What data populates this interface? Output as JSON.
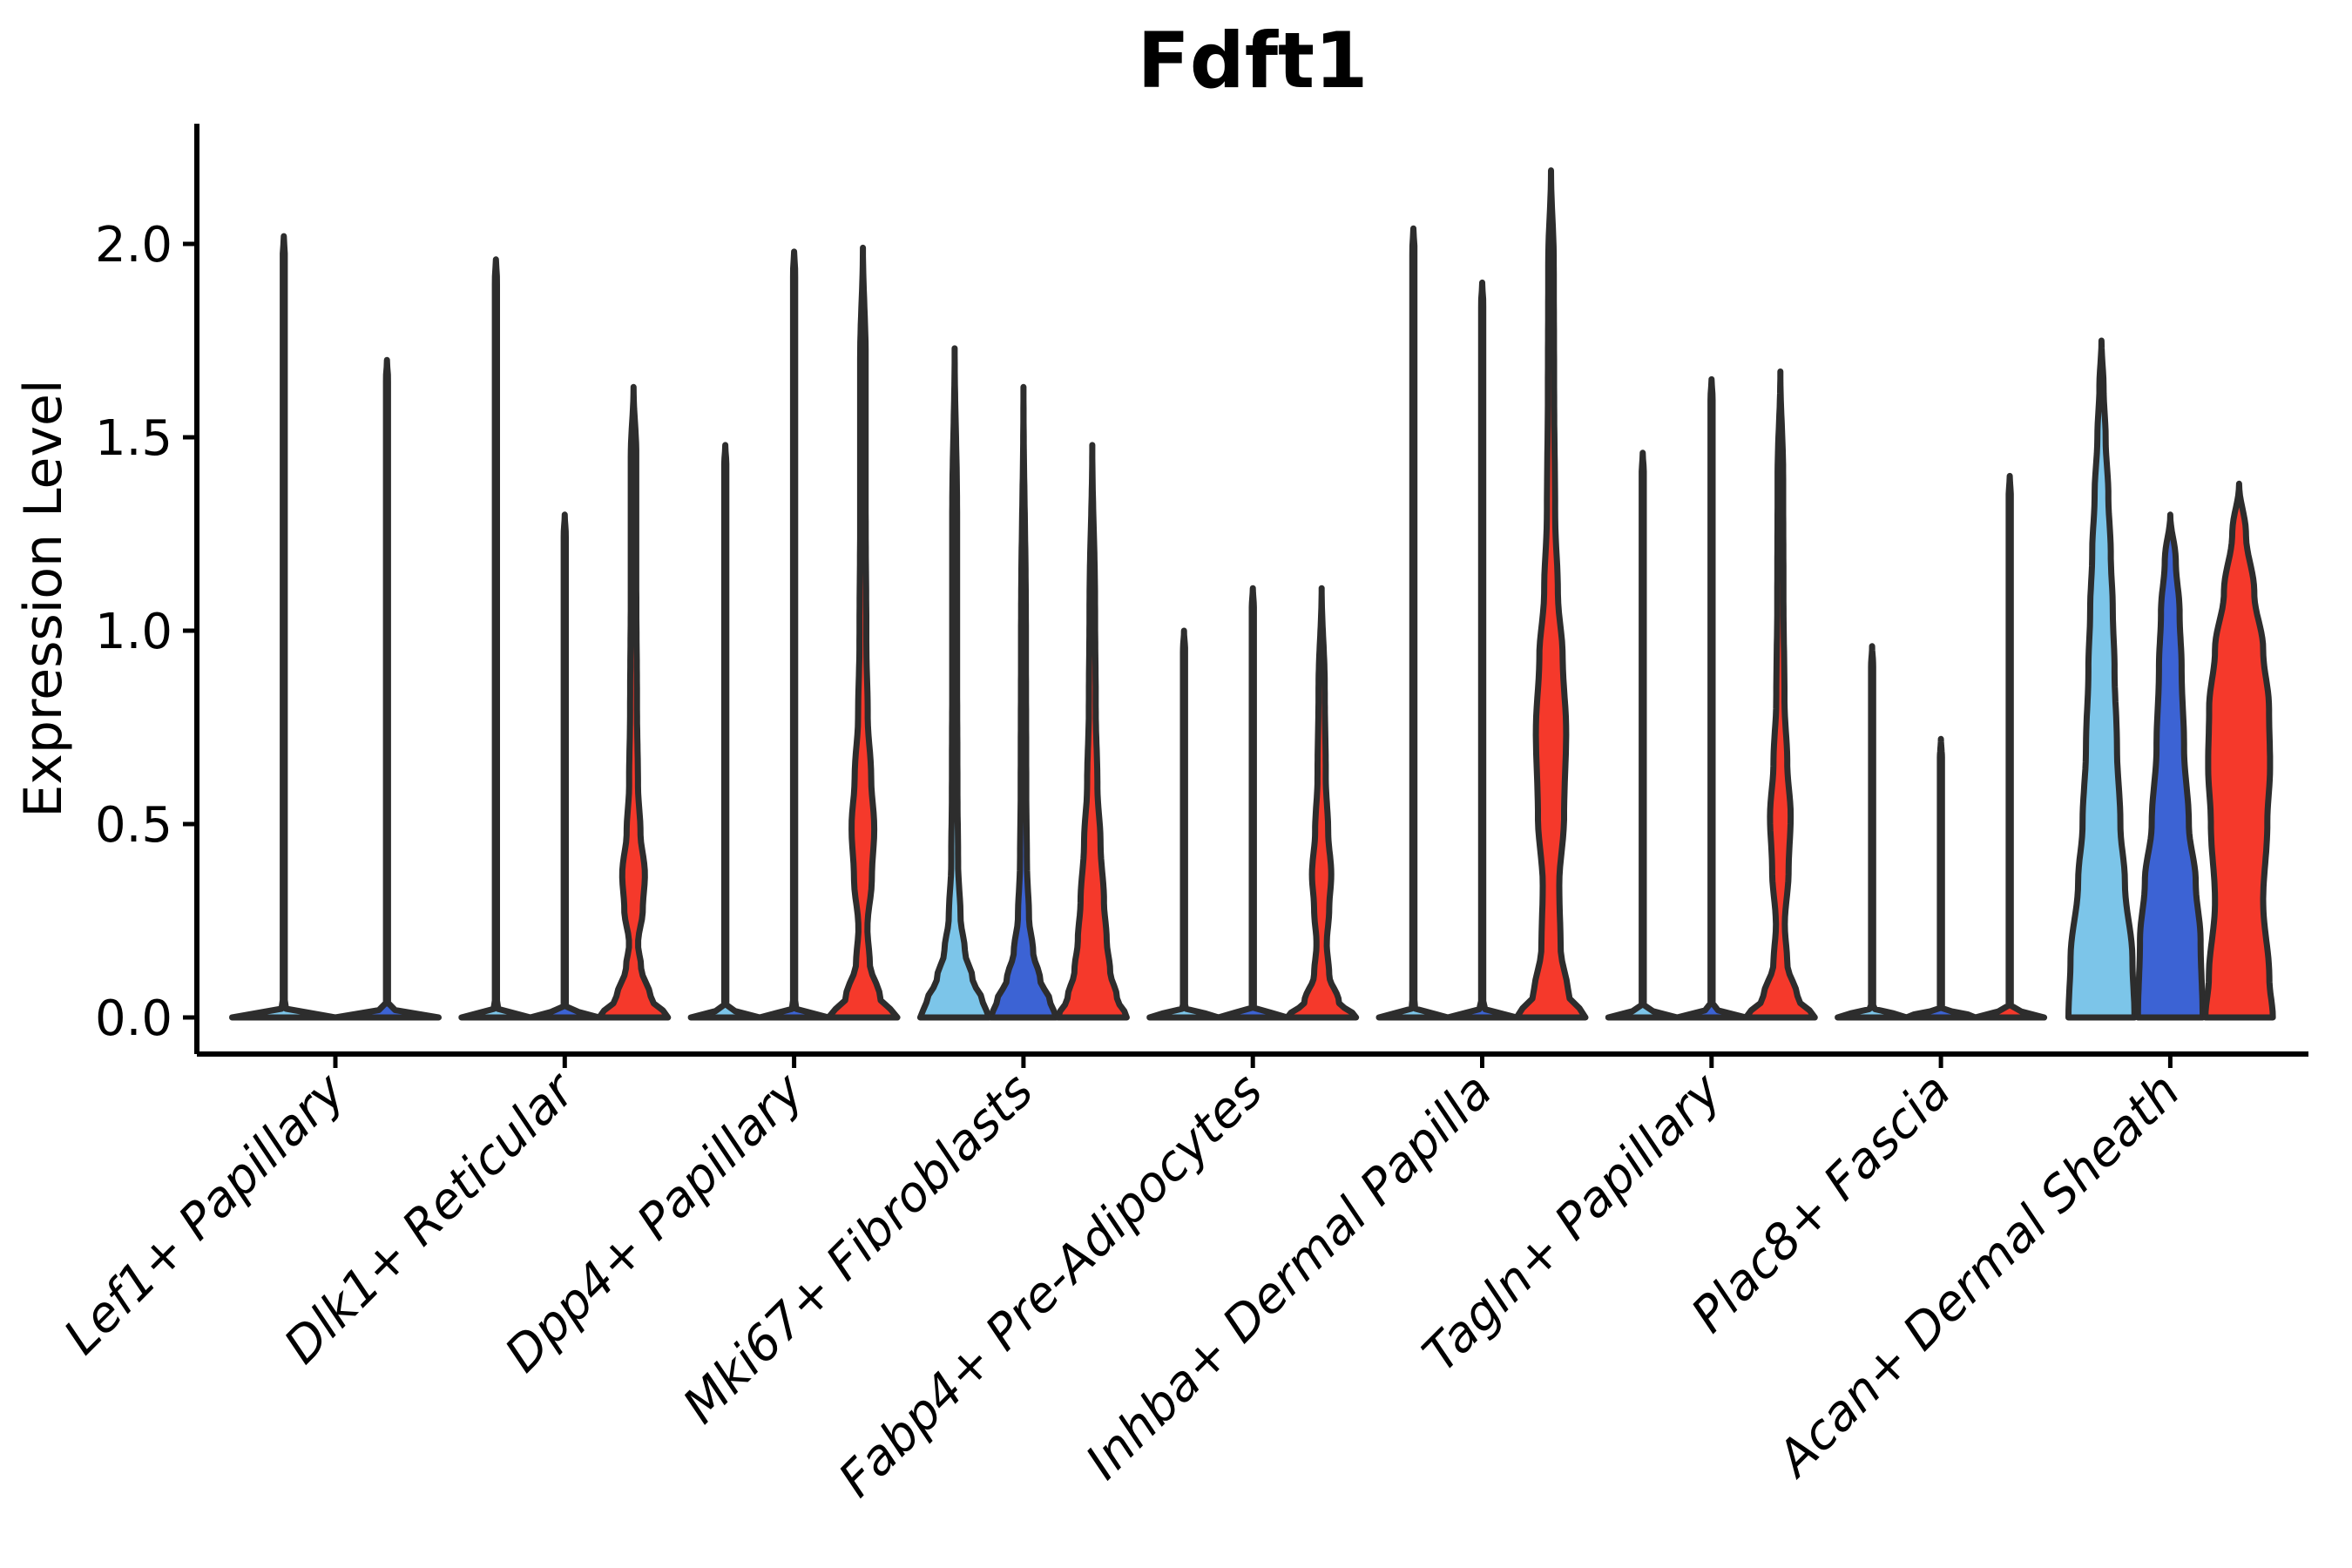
{
  "figure": {
    "background": "#ffffff"
  },
  "chart_data": {
    "type": "violin",
    "title": "Fdft1",
    "ylabel": "Expression Level",
    "xlabel": "",
    "yticks": [
      "0.0",
      "0.5",
      "1.0",
      "1.5",
      "2.0"
    ],
    "ylim": [
      -0.11,
      2.31
    ],
    "grid": false,
    "legend_position": "none",
    "outline_color": "#2d2d2d",
    "axis_color": "#000000",
    "palette": {
      "sample_1": "#7CC5E9",
      "sample_2": "#3C63D4",
      "sample_3": "#F5392B"
    },
    "categories": [
      {
        "label": "Lef1+ Papillary",
        "violins": [
          {
            "sample": "sample_1",
            "color": "#7CC5E9",
            "max_expression": 2.02,
            "width": 0.45,
            "profile": [
              [
                0,
                1
              ],
              [
                0.025,
                0.02
              ],
              [
                1.97,
                0.02
              ],
              [
                2.02,
                0
              ]
            ]
          },
          {
            "sample": "sample_2",
            "color": "#3C63D4",
            "max_expression": 1.7,
            "width": 0.45,
            "profile": [
              [
                0,
                1
              ],
              [
                0.025,
                0.02
              ],
              [
                1.65,
                0.02
              ],
              [
                1.7,
                0
              ]
            ]
          }
        ]
      },
      {
        "label": "Dlk1+ Reticular",
        "violins": [
          {
            "sample": "sample_1",
            "color": "#7CC5E9",
            "max_expression": 1.96,
            "width": 0.3,
            "profile": [
              [
                0,
                1
              ],
              [
                0.025,
                0.03
              ],
              [
                1.91,
                0.03
              ],
              [
                1.96,
                0
              ]
            ]
          },
          {
            "sample": "sample_2",
            "color": "#3C63D4",
            "max_expression": 1.3,
            "width": 0.3,
            "profile": [
              [
                0,
                1
              ],
              [
                0.025,
                0.03
              ],
              [
                1.25,
                0.03
              ],
              [
                1.3,
                0
              ]
            ]
          },
          {
            "sample": "sample_3",
            "color": "#F5392B",
            "max_expression": 1.63,
            "width": 0.3,
            "profile": [
              [
                0,
                1
              ],
              [
                0.05,
                0.5
              ],
              [
                0.13,
                0.22
              ],
              [
                0.19,
                0.13
              ],
              [
                0.28,
                0.27
              ],
              [
                0.37,
                0.33
              ],
              [
                0.48,
                0.2
              ],
              [
                0.6,
                0.13
              ],
              [
                0.8,
                0.1
              ],
              [
                1.1,
                0.08
              ],
              [
                1.45,
                0.08
              ],
              [
                1.63,
                0
              ]
            ]
          }
        ]
      },
      {
        "label": "Dpp4+ Papillary",
        "violins": [
          {
            "sample": "sample_1",
            "color": "#7CC5E9",
            "max_expression": 1.48,
            "width": 0.3,
            "profile": [
              [
                0,
                1
              ],
              [
                0.025,
                0.03
              ],
              [
                1.43,
                0.03
              ],
              [
                1.48,
                0
              ]
            ]
          },
          {
            "sample": "sample_2",
            "color": "#3C63D4",
            "max_expression": 1.98,
            "width": 0.3,
            "profile": [
              [
                0,
                1
              ],
              [
                0.025,
                0.03
              ],
              [
                1.93,
                0.03
              ],
              [
                1.98,
                0
              ]
            ]
          },
          {
            "sample": "sample_3",
            "color": "#F5392B",
            "max_expression": 1.99,
            "width": 0.3,
            "profile": [
              [
                0,
                1
              ],
              [
                0.05,
                0.5
              ],
              [
                0.14,
                0.2
              ],
              [
                0.23,
                0.13
              ],
              [
                0.36,
                0.26
              ],
              [
                0.49,
                0.33
              ],
              [
                0.62,
                0.24
              ],
              [
                0.78,
                0.14
              ],
              [
                0.97,
                0.1
              ],
              [
                1.3,
                0.08
              ],
              [
                1.7,
                0.08
              ],
              [
                1.99,
                0
              ]
            ]
          }
        ]
      },
      {
        "label": "Mki67+ Fibroblasts",
        "violins": [
          {
            "sample": "sample_1",
            "color": "#7CC5E9",
            "max_expression": 1.73,
            "width": 0.3,
            "profile": [
              [
                0,
                1
              ],
              [
                0.04,
                0.82
              ],
              [
                0.1,
                0.52
              ],
              [
                0.17,
                0.3
              ],
              [
                0.26,
                0.17
              ],
              [
                0.4,
                0.1
              ],
              [
                0.6,
                0.08
              ],
              [
                0.9,
                0.07
              ],
              [
                1.3,
                0.07
              ],
              [
                1.73,
                0
              ]
            ]
          },
          {
            "sample": "sample_2",
            "color": "#3C63D4",
            "max_expression": 1.63,
            "width": 0.3,
            "profile": [
              [
                0,
                0.95
              ],
              [
                0.04,
                0.78
              ],
              [
                0.1,
                0.48
              ],
              [
                0.17,
                0.28
              ],
              [
                0.26,
                0.16
              ],
              [
                0.4,
                0.1
              ],
              [
                0.6,
                0.08
              ],
              [
                1.0,
                0.07
              ],
              [
                1.63,
                0
              ]
            ]
          },
          {
            "sample": "sample_3",
            "color": "#F5392B",
            "max_expression": 1.48,
            "width": 0.3,
            "profile": [
              [
                0,
                1
              ],
              [
                0.05,
                0.72
              ],
              [
                0.12,
                0.52
              ],
              [
                0.2,
                0.42
              ],
              [
                0.3,
                0.34
              ],
              [
                0.45,
                0.24
              ],
              [
                0.6,
                0.15
              ],
              [
                0.8,
                0.1
              ],
              [
                1.06,
                0.08
              ],
              [
                1.48,
                0
              ]
            ]
          }
        ]
      },
      {
        "label": "Fabp4+ Pre-Adipocytes",
        "violins": [
          {
            "sample": "sample_1",
            "color": "#7CC5E9",
            "max_expression": 1.0,
            "width": 0.3,
            "profile": [
              [
                0,
                1
              ],
              [
                0.025,
                0.03
              ],
              [
                0.95,
                0.03
              ],
              [
                1.0,
                0
              ]
            ]
          },
          {
            "sample": "sample_2",
            "color": "#3C63D4",
            "max_expression": 1.11,
            "width": 0.3,
            "profile": [
              [
                0,
                1
              ],
              [
                0.025,
                0.03
              ],
              [
                1.06,
                0.03
              ],
              [
                1.11,
                0
              ]
            ]
          },
          {
            "sample": "sample_3",
            "color": "#F5392B",
            "max_expression": 1.11,
            "width": 0.3,
            "profile": [
              [
                0,
                1
              ],
              [
                0.04,
                0.5
              ],
              [
                0.11,
                0.22
              ],
              [
                0.19,
                0.15
              ],
              [
                0.28,
                0.22
              ],
              [
                0.37,
                0.28
              ],
              [
                0.48,
                0.19
              ],
              [
                0.62,
                0.12
              ],
              [
                0.85,
                0.09
              ],
              [
                1.11,
                0
              ]
            ]
          }
        ]
      },
      {
        "label": "Inhba+ Dermal Papilla",
        "violins": [
          {
            "sample": "sample_1",
            "color": "#7CC5E9",
            "max_expression": 2.04,
            "width": 0.3,
            "profile": [
              [
                0,
                1
              ],
              [
                0.025,
                0.03
              ],
              [
                1.99,
                0.03
              ],
              [
                2.04,
                0
              ]
            ]
          },
          {
            "sample": "sample_2",
            "color": "#3C63D4",
            "max_expression": 1.9,
            "width": 0.3,
            "profile": [
              [
                0,
                1
              ],
              [
                0.025,
                0.03
              ],
              [
                1.85,
                0.03
              ],
              [
                1.9,
                0
              ]
            ]
          },
          {
            "sample": "sample_3",
            "color": "#F5392B",
            "max_expression": 2.19,
            "width": 0.3,
            "profile": [
              [
                0,
                1
              ],
              [
                0.06,
                0.5
              ],
              [
                0.18,
                0.28
              ],
              [
                0.34,
                0.24
              ],
              [
                0.52,
                0.38
              ],
              [
                0.74,
                0.44
              ],
              [
                0.93,
                0.34
              ],
              [
                1.1,
                0.2
              ],
              [
                1.3,
                0.12
              ],
              [
                1.62,
                0.09
              ],
              [
                1.95,
                0.08
              ],
              [
                2.19,
                0
              ]
            ]
          }
        ]
      },
      {
        "label": "Tagln+ Papillary",
        "violins": [
          {
            "sample": "sample_1",
            "color": "#7CC5E9",
            "max_expression": 1.46,
            "width": 0.3,
            "profile": [
              [
                0,
                1
              ],
              [
                0.025,
                0.03
              ],
              [
                1.41,
                0.03
              ],
              [
                1.46,
                0
              ]
            ]
          },
          {
            "sample": "sample_2",
            "color": "#3C63D4",
            "max_expression": 1.65,
            "width": 0.3,
            "profile": [
              [
                0,
                1
              ],
              [
                0.025,
                0.03
              ],
              [
                1.6,
                0.03
              ],
              [
                1.65,
                0
              ]
            ]
          },
          {
            "sample": "sample_3",
            "color": "#F5392B",
            "max_expression": 1.67,
            "width": 0.3,
            "profile": [
              [
                0,
                1
              ],
              [
                0.05,
                0.5
              ],
              [
                0.14,
                0.2
              ],
              [
                0.24,
                0.13
              ],
              [
                0.38,
                0.24
              ],
              [
                0.52,
                0.3
              ],
              [
                0.66,
                0.2
              ],
              [
                0.82,
                0.12
              ],
              [
                1.08,
                0.09
              ],
              [
                1.4,
                0.08
              ],
              [
                1.67,
                0
              ]
            ]
          }
        ]
      },
      {
        "label": "Plac8+ Fascia",
        "violins": [
          {
            "sample": "sample_1",
            "color": "#7CC5E9",
            "max_expression": 0.96,
            "width": 0.3,
            "profile": [
              [
                0,
                1
              ],
              [
                0.025,
                0.03
              ],
              [
                0.91,
                0.03
              ],
              [
                0.96,
                0
              ]
            ]
          },
          {
            "sample": "sample_2",
            "color": "#3C63D4",
            "max_expression": 0.72,
            "width": 0.3,
            "profile": [
              [
                0,
                1
              ],
              [
                0.025,
                0.03
              ],
              [
                0.67,
                0.03
              ],
              [
                0.72,
                0
              ]
            ]
          },
          {
            "sample": "sample_3",
            "color": "#F5392B",
            "max_expression": 1.4,
            "width": 0.3,
            "profile": [
              [
                0,
                1
              ],
              [
                0.025,
                0.03
              ],
              [
                1.35,
                0.03
              ],
              [
                1.4,
                0
              ]
            ]
          }
        ]
      },
      {
        "label": "Acan+ Dermal Sheath",
        "violins": [
          {
            "sample": "sample_1",
            "color": "#7CC5E9",
            "max_expression": 1.75,
            "width": 0.3,
            "profile": [
              [
                0,
                0.96
              ],
              [
                0.15,
                0.9
              ],
              [
                0.35,
                0.68
              ],
              [
                0.5,
                0.55
              ],
              [
                0.7,
                0.45
              ],
              [
                0.9,
                0.38
              ],
              [
                1.05,
                0.33
              ],
              [
                1.2,
                0.27
              ],
              [
                1.35,
                0.2
              ],
              [
                1.5,
                0.12
              ],
              [
                1.63,
                0.06
              ],
              [
                1.75,
                0
              ]
            ]
          },
          {
            "sample": "sample_2",
            "color": "#3C63D4",
            "max_expression": 1.3,
            "width": 0.3,
            "profile": [
              [
                0,
                0.94
              ],
              [
                0.2,
                0.88
              ],
              [
                0.35,
                0.74
              ],
              [
                0.5,
                0.54
              ],
              [
                0.7,
                0.4
              ],
              [
                0.9,
                0.33
              ],
              [
                1.05,
                0.27
              ],
              [
                1.18,
                0.16
              ],
              [
                1.3,
                0
              ]
            ]
          },
          {
            "sample": "sample_3",
            "color": "#F5392B",
            "max_expression": 1.38,
            "width": 0.3,
            "profile": [
              [
                0,
                0.98
              ],
              [
                0.1,
                0.88
              ],
              [
                0.3,
                0.7
              ],
              [
                0.5,
                0.82
              ],
              [
                0.65,
                0.9
              ],
              [
                0.8,
                0.87
              ],
              [
                0.95,
                0.7
              ],
              [
                1.1,
                0.44
              ],
              [
                1.25,
                0.2
              ],
              [
                1.38,
                0
              ]
            ]
          }
        ]
      }
    ]
  }
}
